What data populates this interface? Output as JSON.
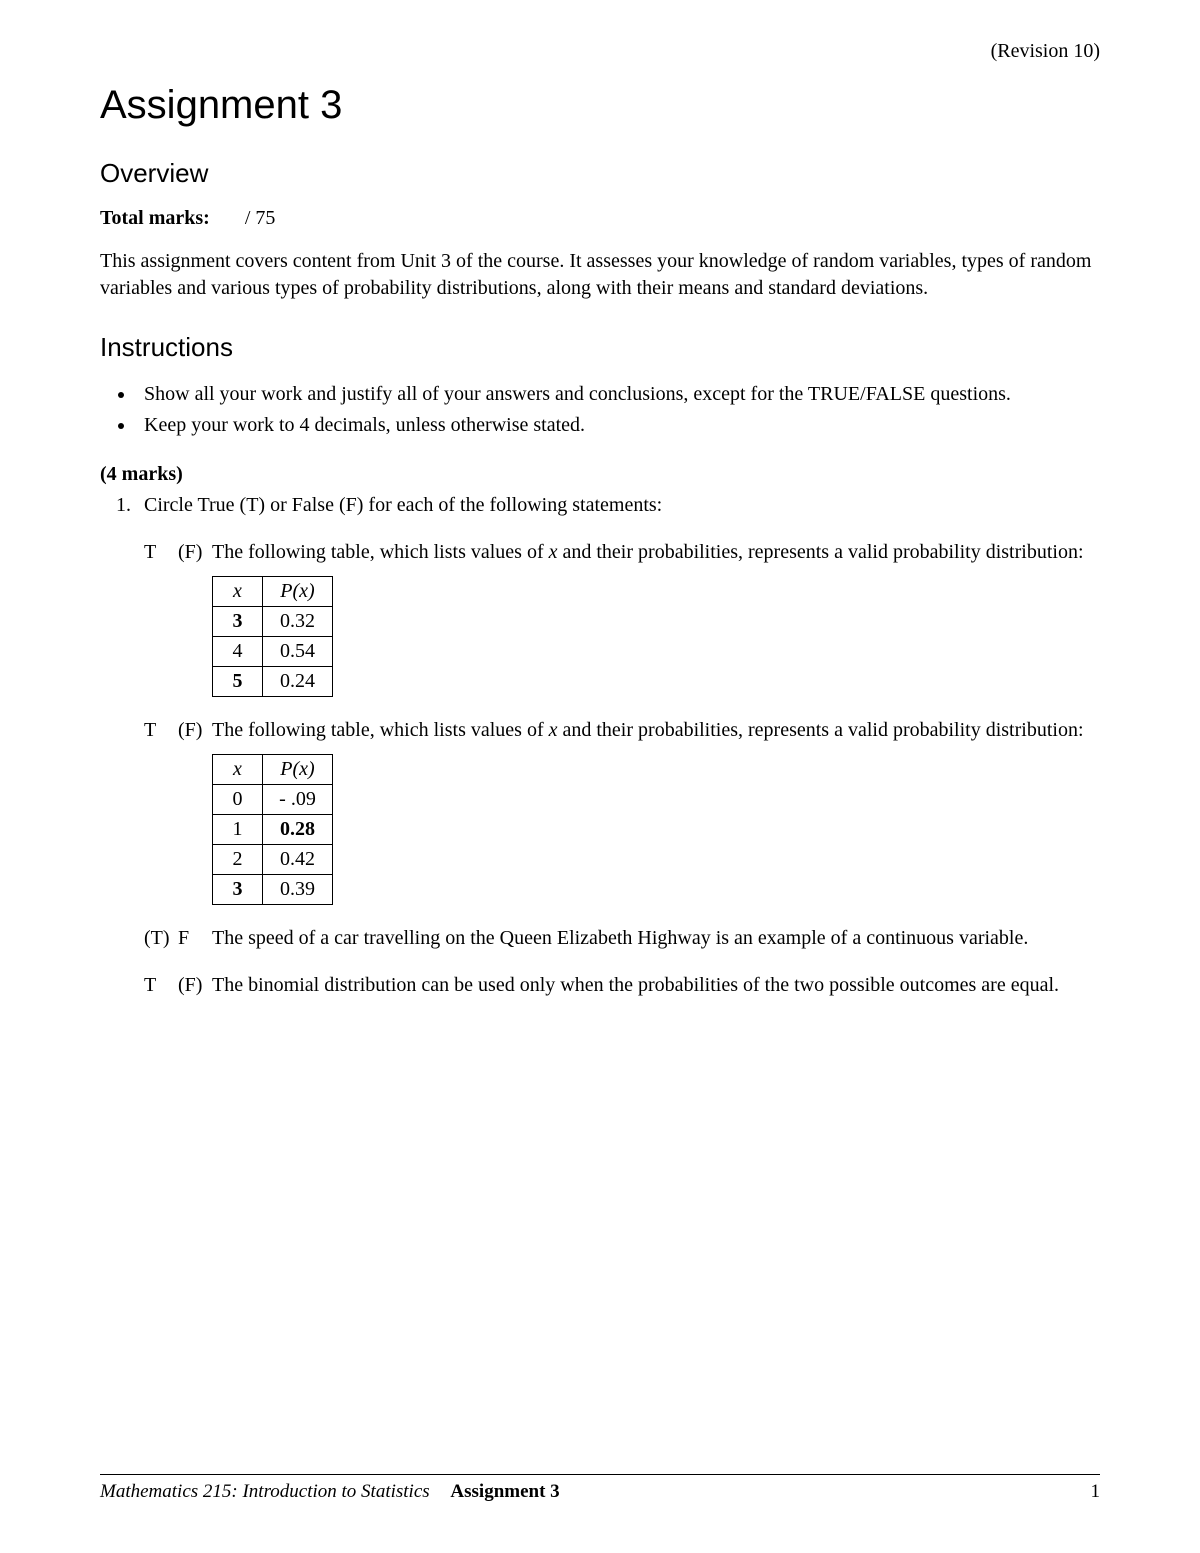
{
  "revision": "(Revision 10)",
  "title": "Assignment 3",
  "overview": {
    "heading": "Overview",
    "total_marks_label": "Total marks:",
    "total_marks_value": "/ 75",
    "description": "This assignment covers content from Unit 3 of the course. It assesses your knowledge of random variables, types of random variables and various types of probability distributions, along with their means and standard deviations."
  },
  "instructions": {
    "heading": "Instructions",
    "items": [
      "Show all your work and justify all of your answers and conclusions, except for the TRUE/FALSE questions.",
      "Keep your work to 4 decimals, unless otherwise stated."
    ]
  },
  "q1": {
    "marks": "(4 marks)",
    "prompt": "Circle True (T) or False (F) for each of the following statements:",
    "items": [
      {
        "t": "T",
        "f": "(F)",
        "statement_prefix": "The following table, which lists values of ",
        "statement_var": "x",
        "statement_suffix": " and their probabilities, represents a valid probability distribution:",
        "has_table": true,
        "table": {
          "col_x": "x",
          "col_px": "P(x)",
          "rows": [
            {
              "x": "3",
              "px": "0.32",
              "x_bold": true,
              "px_bold": false
            },
            {
              "x": "4",
              "px": "0.54",
              "x_bold": false,
              "px_bold": false
            },
            {
              "x": "5",
              "px": "0.24",
              "x_bold": true,
              "px_bold": false
            }
          ]
        }
      },
      {
        "t": "T",
        "f": "(F)",
        "statement_prefix": "The following table, which lists values of ",
        "statement_var": "x",
        "statement_suffix": " and their probabilities, represents a valid probability distribution:",
        "has_table": true,
        "table": {
          "col_x": "x",
          "col_px": "P(x)",
          "rows": [
            {
              "x": "0",
              "px": "- .09",
              "x_bold": false,
              "px_bold": false
            },
            {
              "x": "1",
              "px": "0.28",
              "x_bold": false,
              "px_bold": true
            },
            {
              "x": "2",
              "px": "0.42",
              "x_bold": false,
              "px_bold": false
            },
            {
              "x": "3",
              "px": "0.39",
              "x_bold": true,
              "px_bold": false
            }
          ]
        }
      },
      {
        "t": "(T)",
        "f": "F",
        "statement_full": "The speed of a car travelling on the Queen Elizabeth Highway is an example of a continuous variable.",
        "has_table": false
      },
      {
        "t": "T",
        "f": "(F)",
        "statement_full": "The binomial distribution can be used only when the probabilities of the two possible outcomes are equal.",
        "has_table": false
      }
    ]
  },
  "footer": {
    "course": "Mathematics 215: Introduction to Statistics",
    "assignment": "Assignment 3",
    "page": "1"
  }
}
